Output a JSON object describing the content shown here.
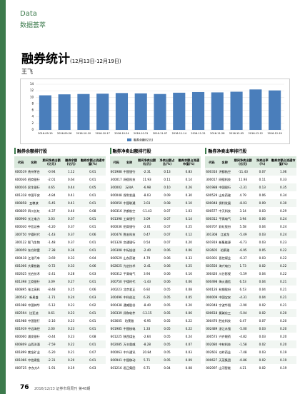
{
  "header": {
    "section": "Data",
    "section_cn": "数据荟萃"
  },
  "title": "融券统计",
  "date_range": "(12月13日-12月19日)",
  "author": "王飞",
  "chart_data": {
    "type": "bar",
    "categories": [
      "2016-09-19",
      "2016-09-26",
      "2016-10-10",
      "2016-10-17",
      "2016-10-24",
      "2016-10-31",
      "2016-11-07",
      "2016-11-14",
      "2016-11-21",
      "2016-11-28",
      "2016-12-05",
      "2016-12-12",
      "2016-12-19"
    ],
    "series": [
      {
        "name": "融券余额(亿元)",
        "color": "#4a7ebb",
        "values": [
          10.6,
          10.9,
          11.0,
          11.1,
          11.3,
          11.2,
          11.0,
          11.4,
          11.6,
          11.5,
          11.7,
          12.4,
          12.1
        ]
      }
    ],
    "ylim": [
      0,
      14
    ],
    "yticks": [
      0,
      2,
      4,
      6,
      8,
      10,
      12,
      14
    ],
    "grid": true
  },
  "tables": [
    {
      "title": "融券余额排行股",
      "columns": [
        "代码",
        "名称",
        "期间净卖出额(亿元)",
        "融券余额(亿元)",
        "融券余额占流通市值(%)"
      ],
      "rows": [
        [
          "600519",
          "贵州茅台",
          "-0.94",
          "1.12",
          "0.01"
        ],
        [
          "600036",
          "招商银行",
          "-2.01",
          "0.64",
          "0.01"
        ],
        [
          "600016",
          "民生银行",
          "4.65",
          "0.44",
          "0.05"
        ],
        [
          "601318",
          "中国平安",
          "-4.84",
          "0.41",
          "0.01"
        ],
        [
          "000858",
          "五粮液",
          "-5.45",
          "0.41",
          "0.01"
        ],
        [
          "600839",
          "四川长虹",
          "-4.37",
          "0.40",
          "0.08"
        ],
        [
          "600900",
          "长江电力",
          "3.03",
          "0.37",
          "0.01"
        ],
        [
          "600030",
          "中信证券",
          "-4.20",
          "0.37",
          "0.01"
        ],
        [
          "300750",
          "宁德时代",
          "-1.43",
          "0.37",
          "0.06"
        ],
        [
          "300122",
          "智飞生物",
          "-1.48",
          "0.37",
          "0.01"
        ],
        [
          "300059",
          "东方财富",
          "-7.38",
          "0.36",
          "0.01"
        ],
        [
          "600418",
          "江淮汽车",
          "-3.69",
          "0.33",
          "0.04"
        ],
        [
          "601006",
          "大秦铁路",
          "-0.72",
          "0.33",
          "0.06"
        ],
        [
          "002625",
          "光启技术",
          "-2.41",
          "0.28",
          "0.03"
        ],
        [
          "601398",
          "工商银行",
          "3.09",
          "0.27",
          "0.01"
        ],
        [
          "600895",
          "张江高科",
          "-8.48",
          "0.25",
          "0.06"
        ],
        [
          "300502",
          "新易盛",
          "-1.71",
          "0.24",
          "0.03"
        ],
        [
          "601088",
          "中国神华",
          "-5.12",
          "0.23",
          "0.02"
        ],
        [
          "002594",
          "比亚迪",
          "0.61",
          "0.23",
          "0.01"
        ],
        [
          "601988",
          "中国银行",
          "-2.16",
          "0.23",
          "0.01"
        ],
        [
          "601919",
          "中远海控",
          "2.00",
          "0.23",
          "0.01"
        ],
        [
          "600000",
          "浦发银行",
          "-0.44",
          "0.23",
          "0.08"
        ],
        [
          "600809",
          "山西汾酒",
          "-7.59",
          "0.22",
          "0.01"
        ],
        [
          "601899",
          "紫金矿业",
          "-5.20",
          "0.21",
          "0.07"
        ],
        [
          "601066",
          "中信建投",
          "-2.31",
          "0.20",
          "0.01"
        ],
        [
          "000725",
          "京东方A",
          "-1.91",
          "0.19",
          "0.03"
        ]
      ]
    },
    {
      "title": "融券净卖出额排行股",
      "columns": [
        "代码",
        "名称",
        "期间净卖出额(亿元)",
        "净卖出额占比(%)",
        "融券余额占流通市值(%)"
      ],
      "rows": [
        [
          "601988",
          "中国银行",
          "-2.31",
          "0.13",
          "0.83"
        ],
        [
          "300017",
          "网宿科技",
          "11.93",
          "0.11",
          "0.14"
        ],
        [
          "300002",
          "万科A",
          "-6.98",
          "0.10",
          "0.26"
        ],
        [
          "600048",
          "保利发展",
          "-8.03",
          "0.09",
          "0.30"
        ],
        [
          "600050",
          "中国联通",
          "3.03",
          "0.08",
          "0.10"
        ],
        [
          "600316",
          "洪都航空",
          "-11.43",
          "0.07",
          "1.03"
        ],
        [
          "601398",
          "工商银行",
          "3.09",
          "0.07",
          "0.14"
        ],
        [
          "600036",
          "招商银行",
          "-2.01",
          "0.07",
          "0.25"
        ],
        [
          "300476",
          "胜宏科技",
          "0.47",
          "0.07",
          "0.12"
        ],
        [
          "601328",
          "交通银行",
          "0.54",
          "0.07",
          "0.20"
        ],
        [
          "300308",
          "中际旭创",
          "-2.40",
          "0.06",
          "0.06"
        ],
        [
          "600529",
          "山东药玻",
          "4.79",
          "0.06",
          "0.33"
        ],
        [
          "002625",
          "光启技术",
          "-2.41",
          "0.06",
          "0.25"
        ],
        [
          "600312",
          "平高电气",
          "3.94",
          "0.06",
          "0.16"
        ],
        [
          "300750",
          "宁德时代",
          "-1.43",
          "0.06",
          "0.06"
        ],
        [
          "300223",
          "北京君正",
          "6.92",
          "0.05",
          "0.08"
        ],
        [
          "300496",
          "中科创达",
          "6.35",
          "0.05",
          "0.05"
        ],
        [
          "600438",
          "通威股份",
          "-8.40",
          "0.05",
          "0.20"
        ],
        [
          "300339",
          "润和软件",
          "-13.15",
          "0.05",
          "0.06"
        ],
        [
          "603605",
          "珀莱雅",
          "-6.95",
          "0.05",
          "0.22"
        ],
        [
          "601985",
          "中国核电",
          "1.33",
          "0.05",
          "0.22"
        ],
        [
          "601225",
          "陕西煤业",
          "-2.64",
          "0.05",
          "0.24"
        ],
        [
          "002085",
          "万丰奥威",
          "-8.28",
          "0.05",
          "0.07"
        ],
        [
          "000063",
          "中兴通讯",
          "20.84",
          "0.05",
          "0.03"
        ],
        [
          "600941",
          "中国移动",
          "5.71",
          "0.05",
          "0.09"
        ],
        [
          "601216",
          "君正集团",
          "6.71",
          "0.04",
          "0.08"
        ]
      ]
    },
    {
      "title": "融券净卖出率排行股",
      "columns": [
        "代码",
        "名称",
        "期间净卖出额(亿元)",
        "净卖出率(%)",
        "融券余额占流通市值(%)"
      ],
      "rows": [
        [
          "600316",
          "洪都航空",
          "-11.43",
          "0.07",
          "1.06"
        ],
        [
          "300017",
          "网宿科技",
          "11.93",
          "0.11",
          "0.33"
        ],
        [
          "601988",
          "中国银行",
          "-2.31",
          "0.13",
          "0.35"
        ],
        [
          "600529",
          "山东药玻",
          "4.79",
          "0.06",
          "0.34"
        ],
        [
          "600048",
          "保利发展",
          "-8.03",
          "0.09",
          "0.30"
        ],
        [
          "600577",
          "中天科技",
          "3.14",
          "0.03",
          "0.29"
        ],
        [
          "600312",
          "平高电气",
          "3.94",
          "0.06",
          "0.24"
        ],
        [
          "600707",
          "彩虹股份",
          "5.58",
          "0.04",
          "0.24"
        ],
        [
          "301308",
          "江波龙",
          "-5.49",
          "0.03",
          "0.24"
        ],
        [
          "601919",
          "新集能源",
          "-6.73",
          "0.03",
          "0.23"
        ],
        [
          "603605",
          "珀莱雅",
          "-6.95",
          "0.05",
          "0.22"
        ],
        [
          "601001",
          "晋控煤业",
          "-6.37",
          "0.03",
          "0.22"
        ],
        [
          "603556",
          "海兴电力",
          "1.73",
          "0.02",
          "0.22"
        ],
        [
          "300426",
          "川谷影视",
          "-5.59",
          "0.04",
          "0.22"
        ],
        [
          "600498",
          "烽火通信",
          "6.53",
          "0.04",
          "0.21"
        ],
        [
          "600126",
          "杭钢股份",
          "6.53",
          "0.04",
          "0.21"
        ],
        [
          "000009",
          "中国宝安",
          "-4.31",
          "0.04",
          "0.21"
        ],
        [
          "002048",
          "宁波华翔",
          "-2.90",
          "0.02",
          "0.21"
        ],
        [
          "600618",
          "氯碱化工",
          "-5.04",
          "0.02",
          "0.20"
        ],
        [
          "300476",
          "胜宏科技",
          "0.47",
          "0.07",
          "0.20"
        ],
        [
          "002489",
          "浙江永强",
          "-5.00",
          "0.03",
          "0.20"
        ],
        [
          "300573",
          "兴齐眼药",
          "-4.82",
          "0.03",
          "0.20"
        ],
        [
          "002080",
          "中材科技",
          "-1.58",
          "0.02",
          "0.20"
        ],
        [
          "002603",
          "以岭药业",
          "-7.48",
          "0.03",
          "0.19"
        ],
        [
          "000627",
          "天茂集团",
          "-0.86",
          "0.02",
          "0.19"
        ],
        [
          "002097",
          "山河智能",
          "4.21",
          "0.02",
          "0.19"
        ]
      ]
    }
  ],
  "footer": {
    "page": "76",
    "issue": "2016/12/23 证券市场周刊 第48期"
  }
}
